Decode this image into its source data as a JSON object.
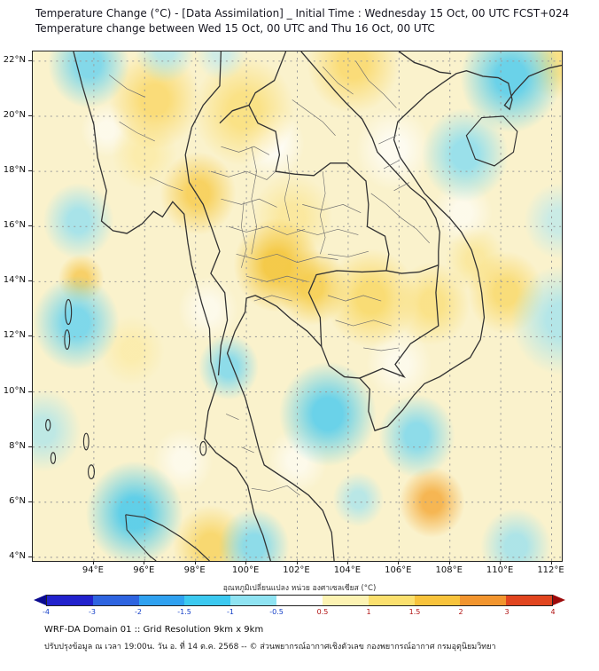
{
  "header": {
    "title_line1": "Temperature Change (°C) - [Data Assimilation] _ Initial Time : Wednesday 15 Oct, 00 UTC FCST+024",
    "title_line2": "Temperature change between Wed 15 Oct, 00 UTC and Thu 16 Oct, 00 UTC"
  },
  "map": {
    "lat_ticks": [
      "22°N",
      "20°N",
      "18°N",
      "16°N",
      "14°N",
      "12°N",
      "10°N",
      "8°N",
      "6°N",
      "4°N"
    ],
    "lon_ticks": [
      "94°E",
      "96°E",
      "98°E",
      "100°E",
      "102°E",
      "104°E",
      "106°E",
      "108°E",
      "110°E",
      "112°E"
    ],
    "base_color": "#faf2cc",
    "field_blobs": [
      {
        "lon": 93.8,
        "lat": 21.9,
        "r": 1.6,
        "c": "rgba(110,212,238,0.85)"
      },
      {
        "lon": 96.8,
        "lat": 22.4,
        "r": 1.2,
        "c": "rgba(160,228,245,0.7)"
      },
      {
        "lon": 110.4,
        "lat": 21.4,
        "r": 2.0,
        "c": "rgba(90,206,236,0.9)"
      },
      {
        "lon": 108.6,
        "lat": 18.6,
        "r": 1.7,
        "c": "rgba(130,220,242,0.8)"
      },
      {
        "lon": 93.4,
        "lat": 16.2,
        "r": 1.4,
        "c": "rgba(140,222,243,0.75)"
      },
      {
        "lon": 93.3,
        "lat": 12.5,
        "r": 1.7,
        "c": "rgba(105,211,239,0.85)"
      },
      {
        "lon": 99.3,
        "lat": 10.9,
        "r": 1.2,
        "c": "rgba(115,214,240,0.8)"
      },
      {
        "lon": 103.2,
        "lat": 9.2,
        "r": 1.9,
        "c": "rgba(90,206,236,0.9)"
      },
      {
        "lon": 106.7,
        "lat": 8.4,
        "r": 1.5,
        "c": "rgba(115,214,240,0.8)"
      },
      {
        "lon": 95.6,
        "lat": 5.6,
        "r": 1.9,
        "c": "rgba(80,203,235,0.9)"
      },
      {
        "lon": 100.3,
        "lat": 4.4,
        "r": 1.4,
        "c": "rgba(115,214,240,0.8)"
      },
      {
        "lon": 112.4,
        "lat": 12.6,
        "r": 2.0,
        "c": "rgba(150,225,244,0.7)"
      },
      {
        "lon": 112.3,
        "lat": 16.2,
        "r": 1.4,
        "c": "rgba(170,230,246,0.6)"
      },
      {
        "lon": 110.6,
        "lat": 4.4,
        "r": 1.4,
        "c": "rgba(140,222,243,0.7)"
      },
      {
        "lon": 104.4,
        "lat": 6.1,
        "r": 1.0,
        "c": "rgba(150,225,244,0.65)"
      },
      {
        "lon": 99.0,
        "lat": 22.3,
        "r": 1.0,
        "c": "rgba(180,233,247,0.6)"
      },
      {
        "lon": 92.0,
        "lat": 8.6,
        "r": 1.5,
        "c": "rgba(150,225,244,0.6)"
      },
      {
        "lon": 96.4,
        "lat": 20.6,
        "r": 1.8,
        "c": "rgba(250,215,100,0.8)"
      },
      {
        "lon": 99.9,
        "lat": 20.2,
        "r": 2.0,
        "c": "rgba(250,220,110,0.75)"
      },
      {
        "lon": 104.2,
        "lat": 21.9,
        "r": 1.8,
        "c": "rgba(250,215,100,0.8)"
      },
      {
        "lon": 98.1,
        "lat": 17.2,
        "r": 1.5,
        "c": "rgba(247,205,80,0.85)"
      },
      {
        "lon": 101.2,
        "lat": 14.6,
        "r": 1.7,
        "c": "rgba(244,198,60,0.9)"
      },
      {
        "lon": 102.6,
        "lat": 13.8,
        "r": 1.4,
        "c": "rgba(246,205,75,0.85)"
      },
      {
        "lon": 104.9,
        "lat": 13.4,
        "r": 1.8,
        "c": "rgba(249,215,95,0.8)"
      },
      {
        "lon": 107.3,
        "lat": 13.2,
        "r": 1.5,
        "c": "rgba(250,220,110,0.7)"
      },
      {
        "lon": 110.2,
        "lat": 13.6,
        "r": 1.5,
        "c": "rgba(249,214,95,0.75)"
      },
      {
        "lon": 107.3,
        "lat": 6.0,
        "r": 1.3,
        "c": "rgba(245,176,70,0.9)"
      },
      {
        "lon": 98.6,
        "lat": 4.4,
        "r": 1.5,
        "c": "rgba(248,210,90,0.8)"
      },
      {
        "lon": 93.5,
        "lat": 14.1,
        "r": 0.9,
        "c": "rgba(246,200,80,0.8)"
      },
      {
        "lon": 112.2,
        "lat": 21.9,
        "r": 1.3,
        "c": "rgba(250,218,105,0.7)"
      },
      {
        "lon": 101.8,
        "lat": 16.3,
        "r": 1.6,
        "c": "rgba(251,228,140,0.7)"
      },
      {
        "lon": 96.0,
        "lat": 18.6,
        "r": 1.3,
        "c": "rgba(252,232,150,0.6)"
      },
      {
        "lon": 109.0,
        "lat": 14.8,
        "r": 1.2,
        "c": "rgba(251,226,130,0.6)"
      },
      {
        "lon": 95.5,
        "lat": 11.5,
        "r": 1.3,
        "c": "rgba(252,233,155,0.6)"
      },
      {
        "lon": 101.0,
        "lat": 19.0,
        "r": 1.3,
        "c": "rgba(255,255,255,0.8)"
      },
      {
        "lon": 105.8,
        "lat": 18.8,
        "r": 1.5,
        "c": "rgba(255,255,255,0.7)"
      },
      {
        "lon": 98.5,
        "lat": 13.0,
        "r": 1.2,
        "c": "rgba(255,255,255,0.6)"
      },
      {
        "lon": 106.0,
        "lat": 11.0,
        "r": 1.3,
        "c": "rgba(255,255,255,0.6)"
      },
      {
        "lon": 97.5,
        "lat": 7.5,
        "r": 1.2,
        "c": "rgba(255,255,255,0.6)"
      },
      {
        "lon": 102.0,
        "lat": 7.5,
        "r": 1.2,
        "c": "rgba(255,255,255,0.6)"
      },
      {
        "lon": 108.5,
        "lat": 16.5,
        "r": 1.2,
        "c": "rgba(255,255,255,0.6)"
      },
      {
        "lon": 94.5,
        "lat": 19.5,
        "r": 1.0,
        "c": "rgba(255,255,255,0.6)"
      }
    ]
  },
  "colorbar": {
    "title": "อุณหภูมิเปลี่ยนแปลง หน่วย องศาเซลเซียส (°C)",
    "tick_labels": [
      "-4",
      "-3",
      "-2",
      "-1.5",
      "-1",
      "-0.5",
      "0.5",
      "1",
      "1.5",
      "2",
      "3",
      "4"
    ],
    "segment_colors": [
      "#2222cd",
      "#2e64e0",
      "#2fa1f0",
      "#3cc9f0",
      "#8fe3f2",
      "#ffffff",
      "#fdf3b3",
      "#fbe06e",
      "#f8c33c",
      "#f2952e",
      "#e1451f"
    ],
    "arrow_left_color": "#0a0a8f",
    "arrow_right_color": "#9c0a0a",
    "negative_label_color": "#1540c8",
    "positive_label_color": "#b01010"
  },
  "footer": {
    "domain_info": "WRF-DA Domain 01 :: Grid Resolution 9km x 9km",
    "credit": "ปรับปรุงข้อมูล ณ เวลา 19:00น. วัน อ. ที่ 14 ต.ค. 2568 -- © ส่วนพยากรณ์อากาศเชิงตัวเลข กองพยากรณ์อากาศ กรมอุตุนิยมวิทยา"
  }
}
